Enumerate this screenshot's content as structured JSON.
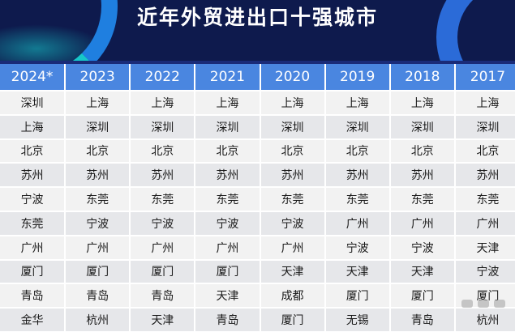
{
  "title": "近年外贸进出口十强城市",
  "years": [
    "2024*",
    "2023",
    "2022",
    "2021",
    "2020",
    "2019",
    "2018",
    "2017"
  ],
  "rows": [
    [
      "深圳",
      "上海",
      "上海",
      "上海",
      "上海",
      "上海",
      "上海",
      "上海"
    ],
    [
      "上海",
      "深圳",
      "深圳",
      "深圳",
      "深圳",
      "深圳",
      "深圳",
      "深圳"
    ],
    [
      "北京",
      "北京",
      "北京",
      "北京",
      "北京",
      "北京",
      "北京",
      "北京"
    ],
    [
      "苏州",
      "苏州",
      "苏州",
      "苏州",
      "苏州",
      "苏州",
      "苏州",
      "苏州"
    ],
    [
      "宁波",
      "东莞",
      "东莞",
      "东莞",
      "东莞",
      "东莞",
      "东莞",
      "东莞"
    ],
    [
      "东莞",
      "宁波",
      "宁波",
      "宁波",
      "宁波",
      "广州",
      "广州",
      "广州"
    ],
    [
      "广州",
      "广州",
      "广州",
      "广州",
      "广州",
      "宁波",
      "宁波",
      "天津"
    ],
    [
      "厦门",
      "厦门",
      "厦门",
      "厦门",
      "天津",
      "天津",
      "天津",
      "宁波"
    ],
    [
      "青岛",
      "青岛",
      "青岛",
      "天津",
      "成都",
      "厦门",
      "厦门",
      "厦门"
    ],
    [
      "金华",
      "杭州",
      "天津",
      "青岛",
      "厦门",
      "无锡",
      "青岛",
      "杭州"
    ]
  ],
  "colors": {
    "header_bg": "#0e1a4d",
    "table_header": "#4a86e0",
    "row_light": "#f2f2f2",
    "row_dark": "#e6e7ea"
  }
}
